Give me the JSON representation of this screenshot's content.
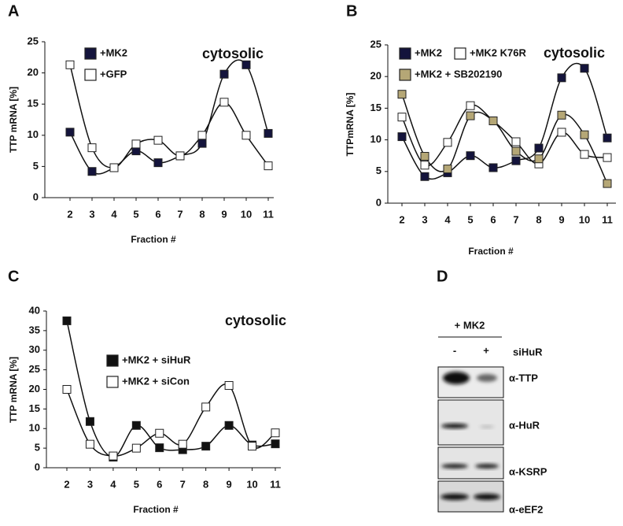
{
  "chart_data": [
    {
      "type": "line",
      "panel": "A",
      "annotation": "cytosolic",
      "y_label": "TTP mRNA [%]",
      "x_label": "Fraction #",
      "categories": [
        "2",
        "3",
        "4",
        "5",
        "6",
        "7",
        "8",
        "9",
        "10",
        "11"
      ],
      "series": [
        {
          "name": "+MK2",
          "color": "#14143c",
          "values": [
            10.5,
            4.2,
            4.8,
            7.5,
            5.6,
            6.7,
            8.7,
            19.8,
            21.3,
            10.3
          ]
        },
        {
          "name": "+GFP",
          "color": "#ffffff",
          "values": [
            21.3,
            8.0,
            4.8,
            8.6,
            9.2,
            6.7,
            10.0,
            15.3,
            10.0,
            5.1
          ]
        }
      ],
      "ylim": [
        0,
        25
      ],
      "yticks": [
        0,
        5,
        10,
        15,
        20,
        25
      ]
    },
    {
      "type": "line",
      "panel": "B",
      "annotation": "cytosolic",
      "y_label": "TTPmRNA [%]",
      "x_label": "Fraction #",
      "categories": [
        "2",
        "3",
        "4",
        "5",
        "6",
        "7",
        "8",
        "9",
        "10",
        "11"
      ],
      "series": [
        {
          "name": "+MK2",
          "color": "#14143c",
          "values": [
            10.5,
            4.2,
            4.8,
            7.5,
            5.6,
            6.7,
            8.7,
            19.8,
            21.3,
            10.3
          ]
        },
        {
          "name": "+MK2 K76R",
          "color": "#ffffff",
          "values": [
            13.6,
            6.0,
            9.6,
            15.4,
            13.0,
            9.7,
            6.2,
            11.2,
            7.7,
            7.2
          ]
        },
        {
          "name": "+MK2 + SB202190",
          "color": "#b5a776",
          "values": [
            17.2,
            7.4,
            5.4,
            13.8,
            13.0,
            8.2,
            7.0,
            13.9,
            10.8,
            3.1
          ]
        }
      ],
      "ylim": [
        0,
        25
      ],
      "yticks": [
        0,
        5,
        10,
        15,
        20,
        25
      ]
    },
    {
      "type": "line",
      "panel": "C",
      "annotation": "cytosolic",
      "y_label": "TTP mRNA [%]",
      "x_label": "Fraction #",
      "categories": [
        "2",
        "3",
        "4",
        "5",
        "6",
        "7",
        "8",
        "9",
        "10",
        "11"
      ],
      "series": [
        {
          "name": "+MK2 + siHuR",
          "color": "#111111",
          "values": [
            37.5,
            11.8,
            2.7,
            10.8,
            5.1,
            4.6,
            5.5,
            10.8,
            5.8,
            6.1
          ]
        },
        {
          "name": "+MK2 + siCon",
          "color": "#ffffff",
          "values": [
            20.0,
            6.0,
            3.0,
            5.0,
            8.8,
            6.0,
            15.5,
            21.0,
            5.5,
            8.9
          ]
        }
      ],
      "ylim": [
        0,
        40
      ],
      "yticks": [
        0,
        5,
        10,
        15,
        20,
        25,
        30,
        35,
        40
      ]
    }
  ],
  "blot": {
    "panel": "D",
    "group": "+ MK2",
    "lanes": [
      "-",
      "+"
    ],
    "treatment": "siHuR",
    "antibodies": [
      "α-TTP",
      "α-HuR",
      "α-KSRP",
      "α-eEF2"
    ]
  }
}
